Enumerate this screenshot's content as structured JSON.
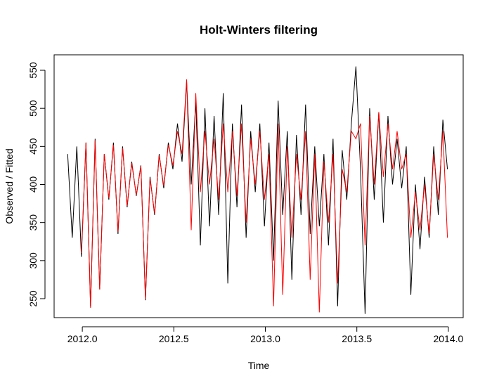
{
  "chart_data": {
    "type": "line",
    "title": "Holt-Winters filtering",
    "x_label": "Time",
    "y_label": "Observed / Fitted",
    "x": [
      2011.92,
      2011.945,
      2011.97,
      2011.995,
      2012.02,
      2012.045,
      2012.07,
      2012.095,
      2012.12,
      2012.145,
      2012.17,
      2012.195,
      2012.22,
      2012.245,
      2012.27,
      2012.295,
      2012.32,
      2012.345,
      2012.37,
      2012.395,
      2012.42,
      2012.445,
      2012.47,
      2012.495,
      2012.52,
      2012.545,
      2012.57,
      2012.595,
      2012.62,
      2012.645,
      2012.67,
      2012.695,
      2012.72,
      2012.745,
      2012.77,
      2012.795,
      2012.82,
      2012.845,
      2012.87,
      2012.895,
      2012.92,
      2012.945,
      2012.97,
      2012.995,
      2013.02,
      2013.045,
      2013.07,
      2013.095,
      2013.12,
      2013.145,
      2013.17,
      2013.195,
      2013.22,
      2013.245,
      2013.27,
      2013.295,
      2013.32,
      2013.345,
      2013.37,
      2013.395,
      2013.42,
      2013.445,
      2013.47,
      2013.495,
      2013.52,
      2013.545,
      2013.57,
      2013.595,
      2013.62,
      2013.645,
      2013.67,
      2013.695,
      2013.72,
      2013.745,
      2013.77,
      2013.795,
      2013.82,
      2013.845,
      2013.87,
      2013.895,
      2013.92,
      2013.945,
      2013.97,
      2013.995
    ],
    "series": [
      {
        "color": "#000000",
        "values": [
          440,
          330,
          450,
          305,
          455,
          240,
          460,
          262,
          440,
          380,
          455,
          335,
          450,
          370,
          430,
          385,
          425,
          248,
          410,
          360,
          440,
          395,
          455,
          420,
          480,
          430,
          535,
          400,
          510,
          320,
          500,
          345,
          490,
          360,
          520,
          270,
          480,
          370,
          505,
          330,
          470,
          390,
          480,
          345,
          455,
          300,
          510,
          360,
          470,
          275,
          465,
          360,
          505,
          335,
          450,
          345,
          440,
          320,
          460,
          240,
          445,
          380,
          480,
          555,
          420,
          230,
          500,
          380,
          495,
          350,
          490,
          400,
          460,
          395,
          450,
          255,
          400,
          315,
          410,
          330,
          450,
          360,
          485,
          420
        ]
      },
      {
        "color": "#ff0000",
        "values": [
          null,
          null,
          null,
          310,
          455,
          238,
          458,
          262,
          440,
          382,
          452,
          338,
          448,
          372,
          428,
          386,
          424,
          250,
          408,
          362,
          438,
          398,
          452,
          425,
          470,
          440,
          538,
          340,
          520,
          390,
          470,
          400,
          460,
          380,
          480,
          390,
          470,
          385,
          480,
          350,
          460,
          400,
          470,
          380,
          440,
          240,
          480,
          255,
          450,
          330,
          440,
          380,
          470,
          275,
          440,
          232,
          430,
          350,
          440,
          270,
          420,
          390,
          470,
          460,
          480,
          320,
          490,
          400,
          495,
          410,
          480,
          420,
          470,
          420,
          440,
          330,
          390,
          340,
          400,
          335,
          440,
          380,
          470,
          330
        ]
      }
    ],
    "xlim": [
      2011.846,
      2014.081
    ],
    "ylim": [
      225.1,
      570.3
    ],
    "xticks": [
      {
        "value": 2012,
        "label": "2012.0"
      },
      {
        "value": 2012.5,
        "label": "2012.5"
      },
      {
        "value": 2013,
        "label": "2013.0"
      },
      {
        "value": 2013.5,
        "label": "2013.5"
      },
      {
        "value": 2014,
        "label": "2014.0"
      }
    ],
    "yticks": [
      250,
      300,
      350,
      400,
      450,
      500,
      550
    ]
  }
}
